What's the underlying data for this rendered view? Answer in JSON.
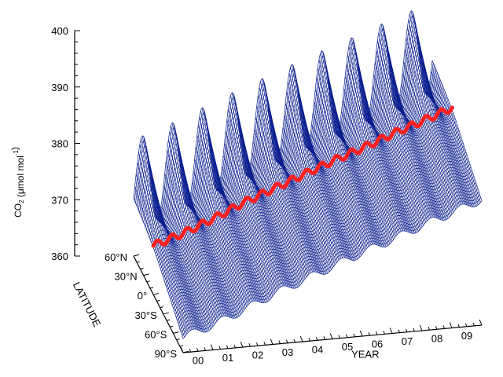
{
  "chart_data": {
    "type": "surface",
    "ylabel_main": "CO",
    "ylabel_sub": "2",
    "ylabel_unit": "(μmol mol",
    "ylabel_sup": "-1",
    "ylabel_close": ")",
    "ylim": [
      360,
      400
    ],
    "z_ticks": [
      "360",
      "370",
      "380",
      "390",
      "400"
    ],
    "lat_title": "LATITUDE",
    "lat_ticks": [
      "60°N",
      "30°N",
      "0°",
      "30°S",
      "60°S",
      "90°S"
    ],
    "lat_range": [
      -90,
      60
    ],
    "year_title": "YEAR",
    "year_ticks": [
      "00",
      "01",
      "02",
      "03",
      "04",
      "05",
      "06",
      "07",
      "08",
      "09"
    ],
    "year_range": [
      2000,
      2010
    ],
    "global_mean": {
      "name": "global mean",
      "color": "#ff2020",
      "points": [
        {
          "year": 2000.0,
          "co2": 368.7
        },
        {
          "year": 2001.0,
          "co2": 370.4
        },
        {
          "year": 2002.0,
          "co2": 372.5
        },
        {
          "year": 2003.0,
          "co2": 374.8
        },
        {
          "year": 2004.0,
          "co2": 376.8
        },
        {
          "year": 2005.0,
          "co2": 378.8
        },
        {
          "year": 2006.0,
          "co2": 380.8
        },
        {
          "year": 2007.0,
          "co2": 382.6
        },
        {
          "year": 2008.0,
          "co2": 384.6
        },
        {
          "year": 2009.0,
          "co2": 386.4
        },
        {
          "year": 2010.0,
          "co2": 388.3
        }
      ]
    },
    "surface_color": "#0b1f8f",
    "seasonal_amplitude_north_ppm": 16,
    "seasonal_amplitude_south_ppm": 1.5
  }
}
